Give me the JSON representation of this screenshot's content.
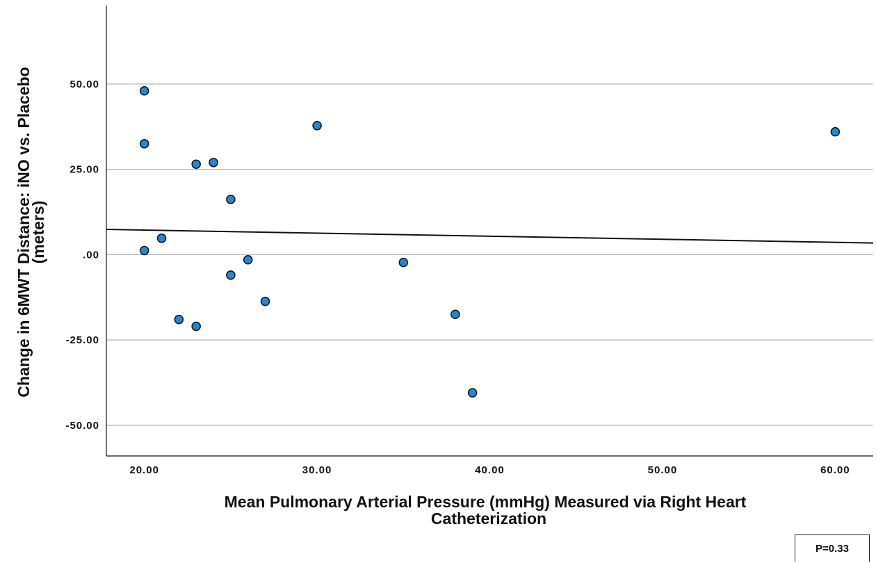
{
  "chart_data": {
    "type": "scatter",
    "xlabel_lines": [
      "Mean Pulmonary Arterial Pressure (mmHg) Measured via Right Heart",
      "Catheterization"
    ],
    "ylabel_lines": [
      "Change in 6MWT Distance: iNO vs. Placebo",
      "(meters)"
    ],
    "xlim": [
      17.8,
      62.2
    ],
    "ylim": [
      -59,
      73
    ],
    "x_ticks": [
      20,
      30,
      40,
      50,
      60
    ],
    "x_tick_labels": [
      "20.00",
      "30.00",
      "40.00",
      "50.00",
      "60.00"
    ],
    "y_ticks": [
      50,
      25,
      0,
      -25,
      -50
    ],
    "y_tick_labels": [
      "50.00",
      "25.00",
      ".00",
      "-25.00",
      "-50.00"
    ],
    "grid": "horizontal",
    "points": [
      {
        "x": 20,
        "y": 48
      },
      {
        "x": 20,
        "y": 32.5
      },
      {
        "x": 20,
        "y": 1.2
      },
      {
        "x": 21,
        "y": 4.8
      },
      {
        "x": 22,
        "y": -19
      },
      {
        "x": 23,
        "y": 26.5
      },
      {
        "x": 23,
        "y": -21
      },
      {
        "x": 24,
        "y": 27
      },
      {
        "x": 25,
        "y": 16.2
      },
      {
        "x": 25,
        "y": -6
      },
      {
        "x": 26,
        "y": -1.5
      },
      {
        "x": 27,
        "y": -13.7
      },
      {
        "x": 30,
        "y": 37.8
      },
      {
        "x": 35,
        "y": -2.3
      },
      {
        "x": 38,
        "y": -17.5
      },
      {
        "x": 39,
        "y": -40.5
      },
      {
        "x": 60,
        "y": 36
      }
    ],
    "fit_line": {
      "x": [
        17.8,
        62.2
      ],
      "y": [
        7.4,
        3.4
      ]
    },
    "point_color": "#1f88d9",
    "point_stroke": "#111111",
    "annotation": "P=0.33"
  }
}
